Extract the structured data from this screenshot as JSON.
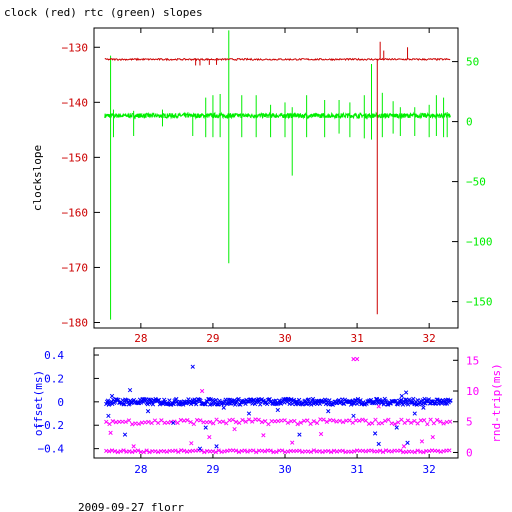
{
  "header": {
    "title": "clock (red) rtc (green) slopes"
  },
  "footer": {
    "caption": "2009-09-27 florr"
  },
  "colors": {
    "red": "#cc0000",
    "green": "#00ee00",
    "blue": "#0000ff",
    "magenta": "#ff00ff",
    "axis": "#000000"
  },
  "chart_data": [
    {
      "type": "line",
      "title": "clock (red) rtc (green) slopes",
      "xlabel": "",
      "ylabel": "clockslope",
      "x_ticks": [
        28,
        29,
        30,
        31,
        32
      ],
      "xlim": [
        27.35,
        32.4
      ],
      "ylim_left": [
        -181,
        -126.5
      ],
      "ylim_right": [
        -172,
        78
      ],
      "y_ticks_left": [
        -130,
        -140,
        -150,
        -160,
        -170,
        -180
      ],
      "y_ticks_right": [
        50,
        0,
        -50,
        -100,
        -150
      ],
      "grid": false,
      "series": [
        {
          "name": "clock",
          "color": "red",
          "axis": "left",
          "baseline": -132.2,
          "x_start": 27.5,
          "x_end": 32.3,
          "events": [
            {
              "x": 28.76,
              "y": -133.3
            },
            {
              "x": 28.82,
              "y": -133.3
            },
            {
              "x": 28.95,
              "y": -133.2
            },
            {
              "x": 29.05,
              "y": -133.2
            },
            {
              "x": 31.28,
              "y": -178.5
            },
            {
              "x": 31.32,
              "y": -129.0
            },
            {
              "x": 31.37,
              "y": -130.6
            },
            {
              "x": 31.7,
              "y": -130.0
            }
          ]
        },
        {
          "name": "rtc",
          "color": "green",
          "axis": "right",
          "baseline": 5,
          "x_start": 27.5,
          "x_end": 32.3,
          "spikes": [
            {
              "x": 27.58,
              "lo": -165,
              "hi": 55
            },
            {
              "x": 27.62,
              "lo": -13,
              "hi": 10
            },
            {
              "x": 27.9,
              "lo": -12,
              "hi": 9
            },
            {
              "x": 28.3,
              "lo": -4,
              "hi": 10
            },
            {
              "x": 28.72,
              "lo": -12,
              "hi": 6
            },
            {
              "x": 28.9,
              "lo": -13,
              "hi": 20
            },
            {
              "x": 29.0,
              "lo": -13,
              "hi": 22
            },
            {
              "x": 29.1,
              "lo": -13,
              "hi": 23
            },
            {
              "x": 29.22,
              "lo": -118,
              "hi": 76
            },
            {
              "x": 29.4,
              "lo": -13,
              "hi": 22
            },
            {
              "x": 29.6,
              "lo": -13,
              "hi": 22
            },
            {
              "x": 29.8,
              "lo": -13,
              "hi": 14
            },
            {
              "x": 30.0,
              "lo": -13,
              "hi": 16
            },
            {
              "x": 30.1,
              "lo": -45,
              "hi": 12
            },
            {
              "x": 30.3,
              "lo": -13,
              "hi": 22
            },
            {
              "x": 30.55,
              "lo": -13,
              "hi": 18
            },
            {
              "x": 30.75,
              "lo": -10,
              "hi": 18
            },
            {
              "x": 30.9,
              "lo": -13,
              "hi": 16
            },
            {
              "x": 31.1,
              "lo": -14,
              "hi": 22
            },
            {
              "x": 31.2,
              "lo": -15,
              "hi": 48
            },
            {
              "x": 31.35,
              "lo": -13,
              "hi": 24
            },
            {
              "x": 31.5,
              "lo": -10,
              "hi": 17
            },
            {
              "x": 31.6,
              "lo": -12,
              "hi": 12
            },
            {
              "x": 31.8,
              "lo": -12,
              "hi": 12
            },
            {
              "x": 32.0,
              "lo": -13,
              "hi": 14
            },
            {
              "x": 32.1,
              "lo": -12,
              "hi": 22
            },
            {
              "x": 32.2,
              "lo": -13,
              "hi": 20
            },
            {
              "x": 32.25,
              "lo": -13,
              "hi": 8
            }
          ]
        }
      ]
    },
    {
      "type": "scatter",
      "xlabel": "",
      "ylabel_left": "offset(ms)",
      "ylabel_right": "rnd-trip(ms)",
      "x_ticks": [
        28,
        29,
        30,
        31,
        32
      ],
      "xlim": [
        27.35,
        32.4
      ],
      "ylim_left": [
        -0.48,
        0.46
      ],
      "ylim_right": [
        -0.9,
        17
      ],
      "y_ticks_left": [
        0.4,
        0.2,
        0,
        -0.2,
        -0.4
      ],
      "y_ticks_left_labels": [
        "0.4",
        "0.2",
        "0",
        "−0.2",
        "−0.4"
      ],
      "y_ticks_right": [
        15,
        10,
        5,
        0
      ],
      "grid": false,
      "series": [
        {
          "name": "offset",
          "color": "blue",
          "axis": "left",
          "baseline": 0.0,
          "outliers": [
            {
              "x": 27.55,
              "y": -0.12
            },
            {
              "x": 27.6,
              "y": 0.05
            },
            {
              "x": 27.78,
              "y": -0.28
            },
            {
              "x": 27.85,
              "y": 0.1
            },
            {
              "x": 28.1,
              "y": -0.08
            },
            {
              "x": 28.45,
              "y": -0.18
            },
            {
              "x": 28.72,
              "y": 0.3
            },
            {
              "x": 28.82,
              "y": -0.4
            },
            {
              "x": 28.9,
              "y": -0.22
            },
            {
              "x": 29.05,
              "y": -0.38
            },
            {
              "x": 29.15,
              "y": -0.05
            },
            {
              "x": 29.5,
              "y": -0.1
            },
            {
              "x": 29.9,
              "y": -0.07
            },
            {
              "x": 30.2,
              "y": -0.28
            },
            {
              "x": 30.6,
              "y": -0.08
            },
            {
              "x": 30.95,
              "y": -0.12
            },
            {
              "x": 31.25,
              "y": -0.27
            },
            {
              "x": 31.3,
              "y": -0.36
            },
            {
              "x": 31.55,
              "y": -0.22
            },
            {
              "x": 31.62,
              "y": 0.05
            },
            {
              "x": 31.68,
              "y": 0.08
            },
            {
              "x": 31.7,
              "y": -0.35
            },
            {
              "x": 31.8,
              "y": -0.1
            },
            {
              "x": 31.92,
              "y": -0.05
            }
          ]
        },
        {
          "name": "rnd-trip",
          "color": "magenta",
          "axis": "right",
          "baseline_low": 0.2,
          "baseline_mid": 5.0,
          "outliers": [
            {
              "x": 27.58,
              "y": 3.2
            },
            {
              "x": 27.9,
              "y": 1.0
            },
            {
              "x": 28.7,
              "y": 1.5
            },
            {
              "x": 28.85,
              "y": 10.0
            },
            {
              "x": 28.95,
              "y": 2.5
            },
            {
              "x": 29.3,
              "y": 3.8
            },
            {
              "x": 29.7,
              "y": 2.8
            },
            {
              "x": 30.1,
              "y": 1.6
            },
            {
              "x": 30.5,
              "y": 3.0
            },
            {
              "x": 30.95,
              "y": 15.2
            },
            {
              "x": 31.0,
              "y": 15.2
            },
            {
              "x": 31.3,
              "y": 7.5
            },
            {
              "x": 31.65,
              "y": 1.0
            },
            {
              "x": 31.9,
              "y": 1.8
            },
            {
              "x": 32.05,
              "y": 2.5
            }
          ]
        }
      ]
    }
  ]
}
